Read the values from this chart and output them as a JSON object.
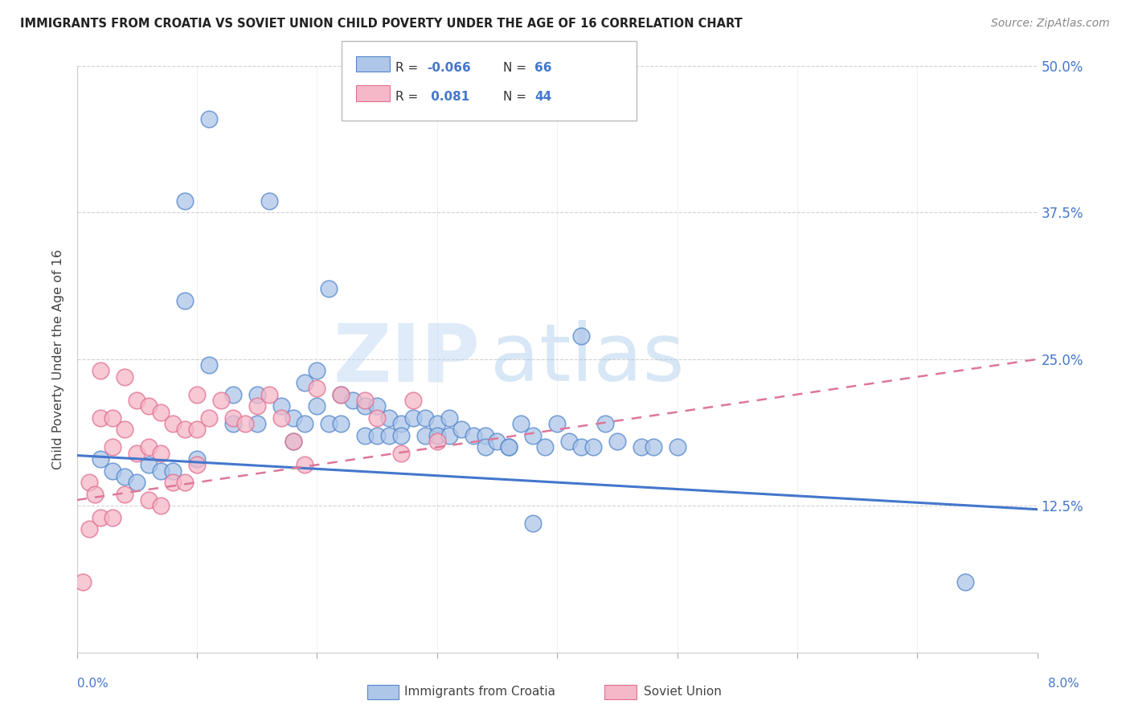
{
  "title": "IMMIGRANTS FROM CROATIA VS SOVIET UNION CHILD POVERTY UNDER THE AGE OF 16 CORRELATION CHART",
  "source": "Source: ZipAtlas.com",
  "ylabel": "Child Poverty Under the Age of 16",
  "yticks": [
    0.0,
    0.125,
    0.25,
    0.375,
    0.5
  ],
  "ytick_labels": [
    "",
    "12.5%",
    "25.0%",
    "37.5%",
    "50.0%"
  ],
  "xlim": [
    0.0,
    0.08
  ],
  "ylim": [
    0.0,
    0.5
  ],
  "croatia_R": -0.066,
  "croatia_N": 66,
  "soviet_R": 0.081,
  "soviet_N": 44,
  "croatia_color": "#aec6e8",
  "soviet_color": "#f5b8c8",
  "croatia_edge_color": "#5588cc",
  "soviet_edge_color": "#e07090",
  "croatia_line_color": "#4477cc",
  "soviet_line_color": "#dd7799",
  "watermark_zip": "ZIP",
  "watermark_atlas": "atlas",
  "croatia_scatter_x": [
    0.011,
    0.009,
    0.016,
    0.021,
    0.009,
    0.011,
    0.013,
    0.013,
    0.015,
    0.015,
    0.017,
    0.018,
    0.018,
    0.019,
    0.019,
    0.02,
    0.02,
    0.021,
    0.022,
    0.022,
    0.023,
    0.024,
    0.024,
    0.025,
    0.025,
    0.026,
    0.026,
    0.027,
    0.027,
    0.028,
    0.029,
    0.029,
    0.03,
    0.03,
    0.031,
    0.031,
    0.032,
    0.033,
    0.034,
    0.034,
    0.035,
    0.036,
    0.036,
    0.037,
    0.038,
    0.039,
    0.04,
    0.041,
    0.042,
    0.043,
    0.044,
    0.045,
    0.047,
    0.048,
    0.05,
    0.038,
    0.042,
    0.074,
    0.002,
    0.003,
    0.004,
    0.005,
    0.006,
    0.007,
    0.008,
    0.01
  ],
  "croatia_scatter_y": [
    0.455,
    0.385,
    0.385,
    0.31,
    0.3,
    0.245,
    0.22,
    0.195,
    0.22,
    0.195,
    0.21,
    0.2,
    0.18,
    0.23,
    0.195,
    0.24,
    0.21,
    0.195,
    0.22,
    0.195,
    0.215,
    0.21,
    0.185,
    0.21,
    0.185,
    0.2,
    0.185,
    0.195,
    0.185,
    0.2,
    0.2,
    0.185,
    0.195,
    0.185,
    0.2,
    0.185,
    0.19,
    0.185,
    0.185,
    0.175,
    0.18,
    0.175,
    0.175,
    0.195,
    0.185,
    0.175,
    0.195,
    0.18,
    0.175,
    0.175,
    0.195,
    0.18,
    0.175,
    0.175,
    0.175,
    0.11,
    0.27,
    0.06,
    0.165,
    0.155,
    0.15,
    0.145,
    0.16,
    0.155,
    0.155,
    0.165
  ],
  "soviet_scatter_x": [
    0.0005,
    0.001,
    0.001,
    0.0015,
    0.002,
    0.002,
    0.002,
    0.003,
    0.003,
    0.003,
    0.004,
    0.004,
    0.004,
    0.005,
    0.005,
    0.006,
    0.006,
    0.006,
    0.007,
    0.007,
    0.007,
    0.008,
    0.008,
    0.009,
    0.009,
    0.01,
    0.01,
    0.01,
    0.011,
    0.012,
    0.013,
    0.014,
    0.015,
    0.016,
    0.017,
    0.018,
    0.019,
    0.02,
    0.022,
    0.024,
    0.025,
    0.027,
    0.028,
    0.03
  ],
  "soviet_scatter_y": [
    0.06,
    0.145,
    0.105,
    0.135,
    0.24,
    0.2,
    0.115,
    0.2,
    0.175,
    0.115,
    0.235,
    0.19,
    0.135,
    0.215,
    0.17,
    0.21,
    0.175,
    0.13,
    0.205,
    0.17,
    0.125,
    0.195,
    0.145,
    0.19,
    0.145,
    0.22,
    0.19,
    0.16,
    0.2,
    0.215,
    0.2,
    0.195,
    0.21,
    0.22,
    0.2,
    0.18,
    0.16,
    0.225,
    0.22,
    0.215,
    0.2,
    0.17,
    0.215,
    0.18
  ],
  "croatia_trend_x0": 0.0,
  "croatia_trend_x1": 0.08,
  "croatia_trend_y0": 0.168,
  "croatia_trend_y1": 0.122,
  "soviet_trend_x0": 0.0,
  "soviet_trend_x1": 0.08,
  "soviet_trend_y0": 0.13,
  "soviet_trend_y1": 0.25
}
